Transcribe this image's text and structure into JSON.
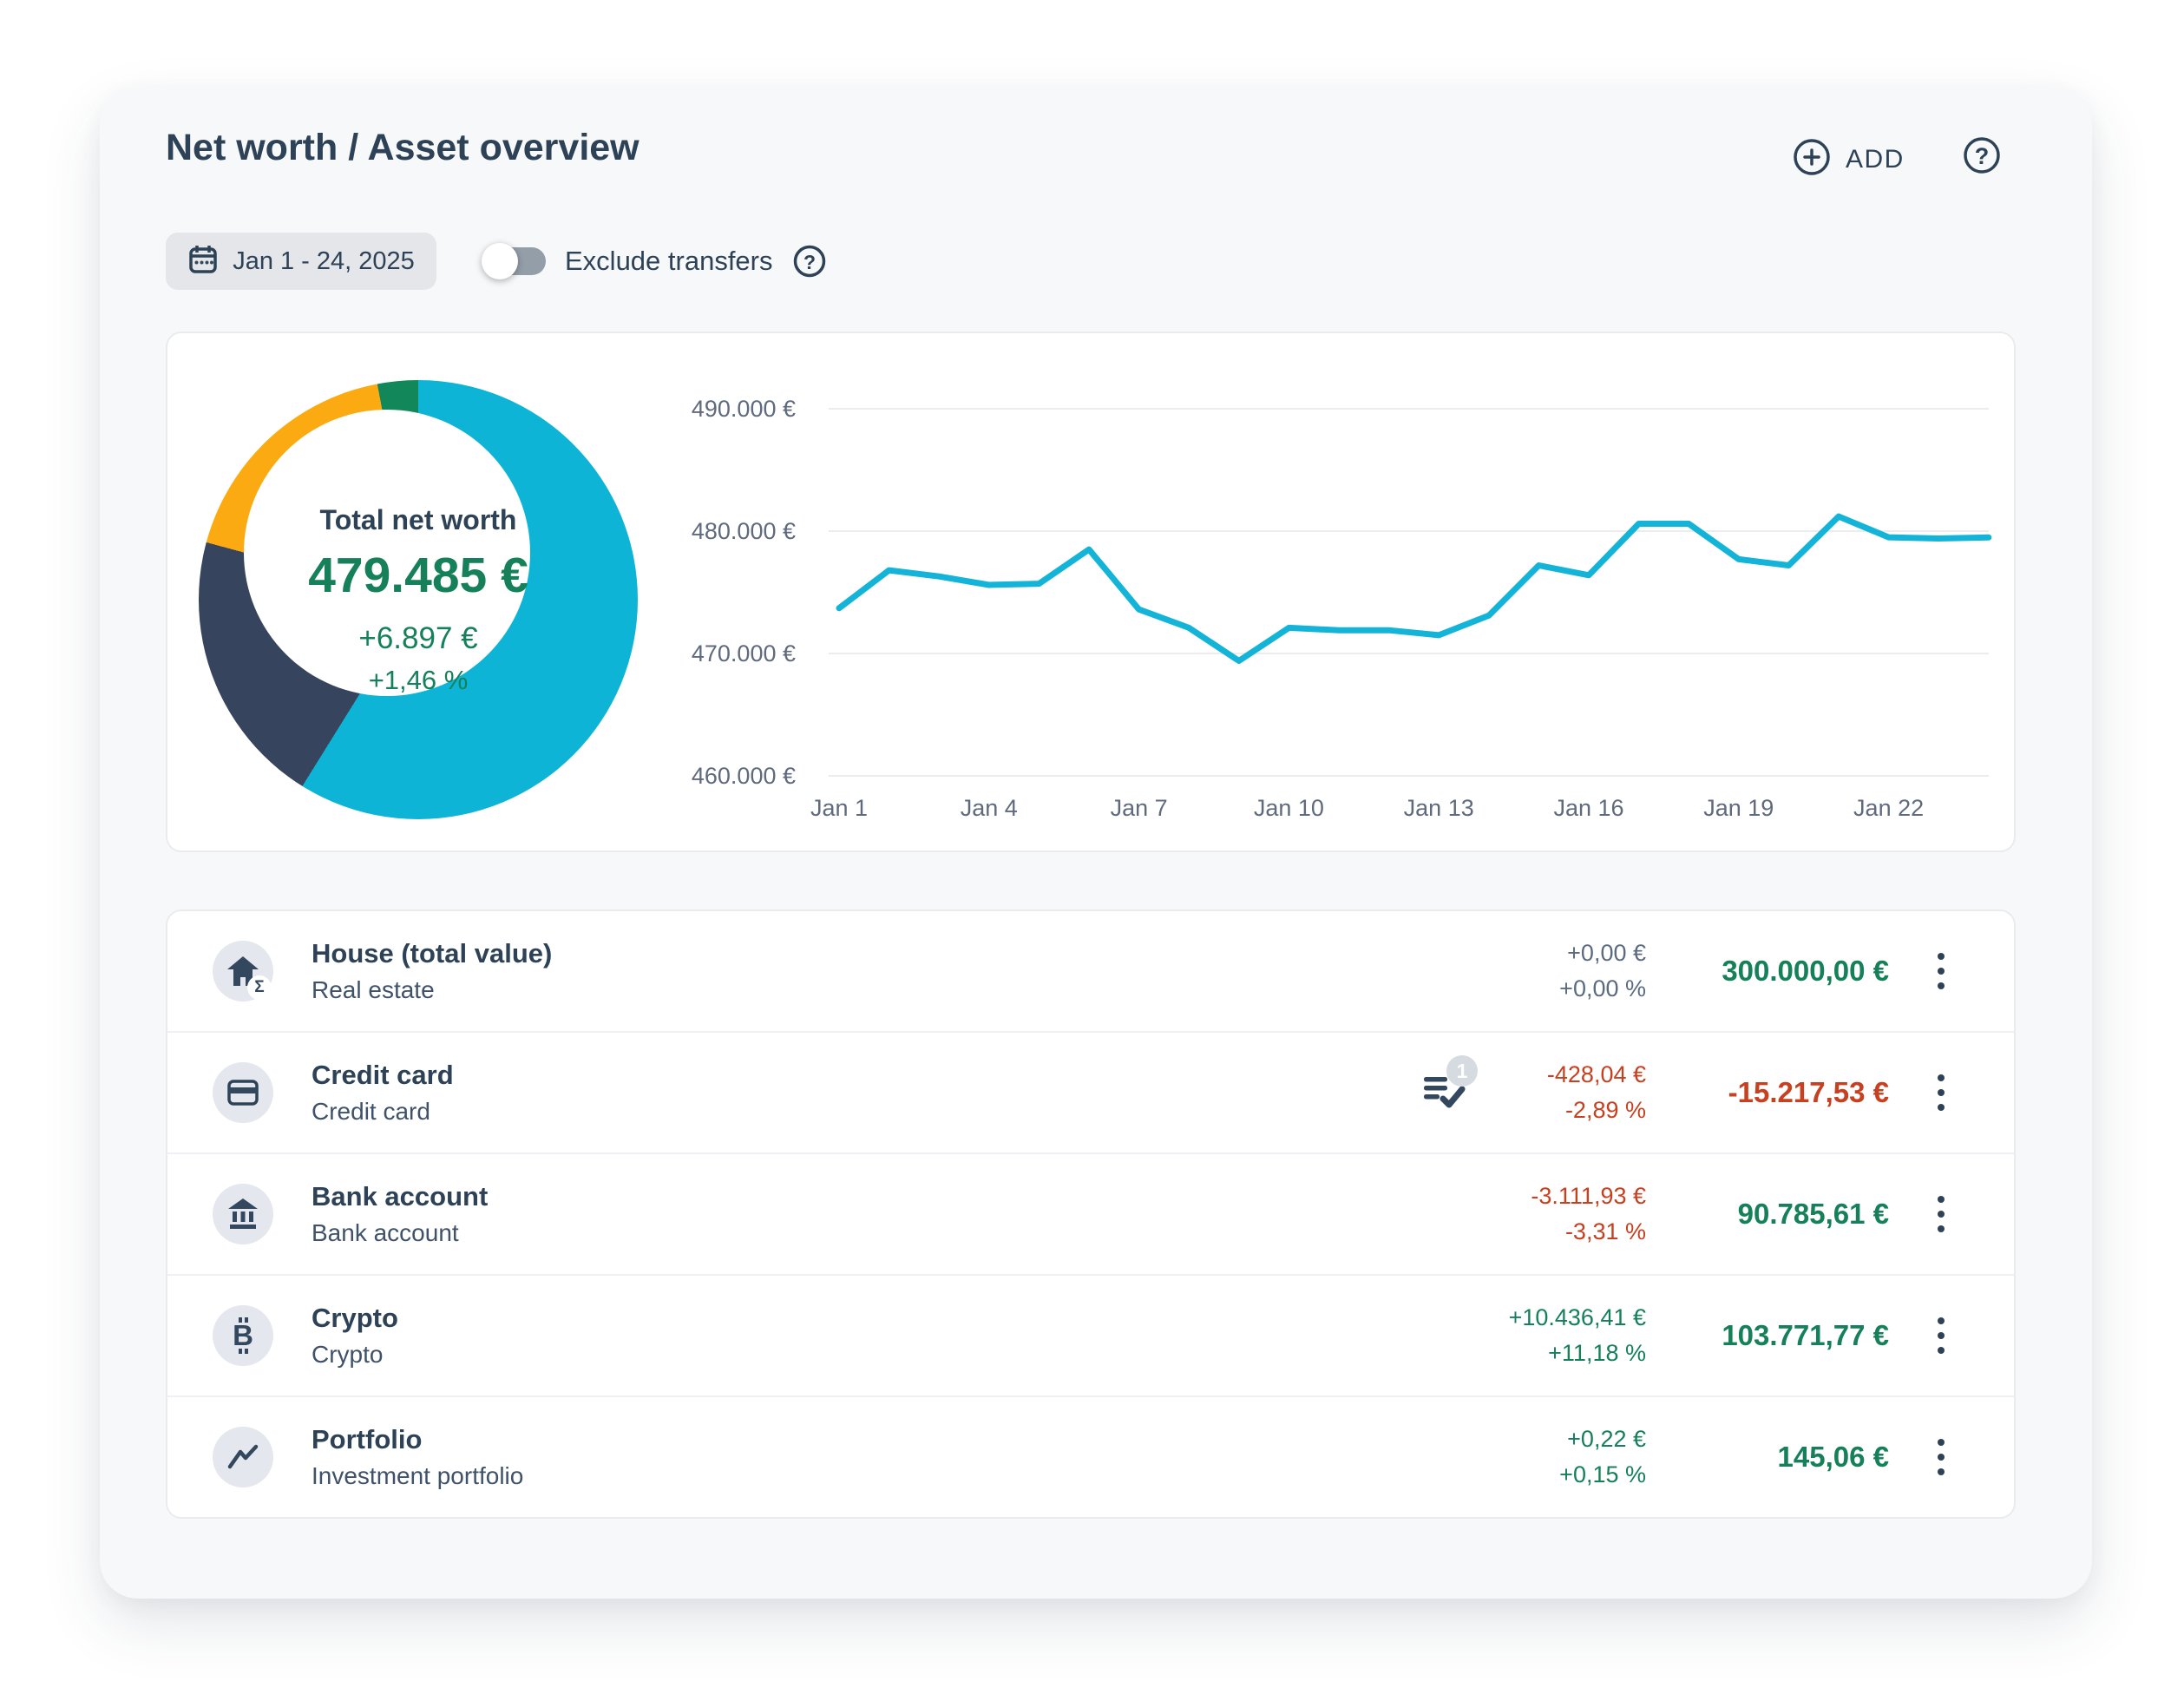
{
  "header": {
    "title": "Net worth / Asset overview",
    "add_button": "ADD"
  },
  "filters": {
    "date_range": "Jan 1 - 24, 2025",
    "exclude_transfers": {
      "label": "Exclude transfers",
      "enabled": false
    }
  },
  "summary": {
    "label": "Total net worth",
    "value": "479.485 €",
    "change_amount": "+6.897 €",
    "change_percent": "+1,46 %"
  },
  "chart_data": [
    {
      "type": "pie",
      "title": "Net worth allocation donut",
      "donut": true,
      "slices": [
        {
          "name": "House (total value)",
          "value": 300000.0,
          "color": "#0db4d6"
        },
        {
          "name": "Crypto",
          "value": 103771.77,
          "color": "#36445e"
        },
        {
          "name": "Bank account",
          "value": 90785.61,
          "color": "#fbab11"
        },
        {
          "name": "Credit card",
          "value": 15217.53,
          "color": "#12875a"
        }
      ]
    },
    {
      "type": "line",
      "title": "Net worth over time (EUR)",
      "x_unit": "day of January 2025",
      "x": [
        1,
        2,
        3,
        4,
        5,
        6,
        7,
        8,
        9,
        10,
        11,
        12,
        13,
        14,
        15,
        16,
        17,
        18,
        19,
        20,
        21,
        22,
        23,
        24
      ],
      "values": [
        473700,
        476800,
        476300,
        475600,
        475700,
        478500,
        473600,
        472100,
        469400,
        472100,
        471900,
        471900,
        471500,
        473100,
        477200,
        476400,
        480600,
        480600,
        477700,
        477200,
        481200,
        479500,
        479400,
        479485
      ],
      "xticks": [
        {
          "day": 1,
          "label": "Jan 1"
        },
        {
          "day": 4,
          "label": "Jan 4"
        },
        {
          "day": 7,
          "label": "Jan 7"
        },
        {
          "day": 10,
          "label": "Jan 10"
        },
        {
          "day": 13,
          "label": "Jan 13"
        },
        {
          "day": 16,
          "label": "Jan 16"
        },
        {
          "day": 19,
          "label": "Jan 19"
        },
        {
          "day": 22,
          "label": "Jan 22"
        }
      ],
      "yticks": [
        {
          "value": 490000,
          "label": "490.000 €"
        },
        {
          "value": 480000,
          "label": "480.000 €"
        },
        {
          "value": 470000,
          "label": "470.000 €"
        },
        {
          "value": 460000,
          "label": "460.000 €"
        }
      ],
      "ylim": [
        457000,
        493000
      ],
      "grid": true,
      "legend": false,
      "line_color": "#14b4d8"
    }
  ],
  "accounts": [
    {
      "name": "House (total value)",
      "category": "Real estate",
      "icon": "house-sum-icon",
      "change_amount": "+0,00 €",
      "change_percent": "+0,00 %",
      "value": "300.000,00 €"
    },
    {
      "name": "Credit card",
      "category": "Credit card",
      "icon": "credit-card-icon",
      "badge_count": "1",
      "change_amount": "-428,04 €",
      "change_percent": "-2,89 %",
      "value": "-15.217,53 €"
    },
    {
      "name": "Bank account",
      "category": "Bank account",
      "icon": "bank-icon",
      "change_amount": "-3.111,93 €",
      "change_percent": "-3,31 %",
      "value": "90.785,61 €"
    },
    {
      "name": "Crypto",
      "category": "Crypto",
      "icon": "bitcoin-icon",
      "change_amount": "+10.436,41 €",
      "change_percent": "+11,18 %",
      "value": "103.771,77 €"
    },
    {
      "name": "Portfolio",
      "category": "Investment portfolio",
      "icon": "trend-line-icon",
      "change_amount": "+0,22 €",
      "change_percent": "+0,15 %",
      "value": "145,06 €"
    }
  ],
  "icons": {
    "sum_glyph": "Σ",
    "question_glyph": "?",
    "bitcoin_glyph": "B"
  },
  "colors": {
    "accent_cyan": "#14b4d8",
    "navy": "#2d4257",
    "green": "#15805a",
    "red": "#c7401f",
    "orange": "#fbab11",
    "card_bg": "#f7f8f9"
  }
}
